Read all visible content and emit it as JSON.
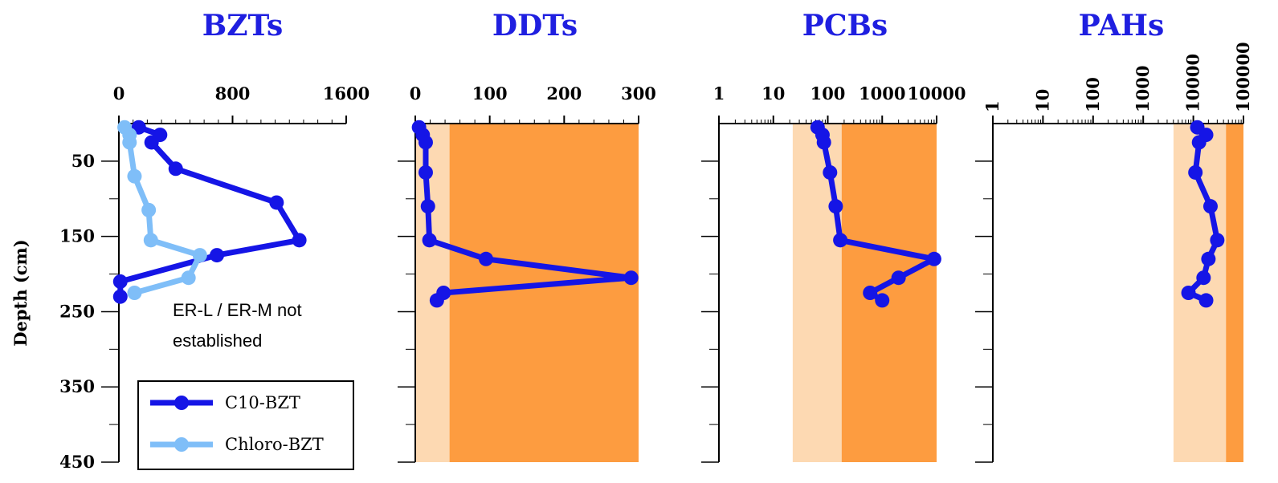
{
  "y_axis": {
    "label": "Depth (cm)",
    "ticks": [
      50,
      150,
      250,
      350,
      450
    ],
    "ylim": [
      0,
      450
    ]
  },
  "note_lines": [
    "ER-L /  ER-M not",
    "established"
  ],
  "legend": {
    "items": [
      {
        "label": "C10-BZT",
        "color": "#1515e6"
      },
      {
        "label": "Chloro-BZT",
        "color": "#7fbef8"
      }
    ]
  },
  "colors": {
    "title": "#1f1fe0",
    "er_l_band": "#fdd9b2",
    "er_m_band": "#fd9c40"
  },
  "chart_data": [
    {
      "type": "line",
      "title": "BZTs",
      "xscale": "linear",
      "xlim": [
        0,
        1600
      ],
      "xticks": [
        "0",
        "800",
        "1600"
      ],
      "ylabel": "Depth (cm)",
      "series": [
        {
          "name": "C10-BZT",
          "color": "#1515e6",
          "x": [
            140,
            290,
            230,
            400,
            1110,
            1270,
            690,
            10,
            10
          ],
          "y": [
            5,
            15,
            25,
            60,
            105,
            155,
            175,
            210,
            230
          ]
        },
        {
          "name": "Chloro-BZT",
          "color": "#7fbef8",
          "x": [
            40,
            75,
            75,
            110,
            210,
            225,
            570,
            490,
            110
          ],
          "y": [
            5,
            15,
            25,
            70,
            115,
            155,
            175,
            205,
            225
          ]
        }
      ]
    },
    {
      "type": "line",
      "title": "DDTs",
      "xscale": "linear",
      "xlim": [
        0,
        300
      ],
      "xticks": [
        "0",
        "100",
        "200",
        "300"
      ],
      "bands": [
        {
          "name": "ER-L",
          "from": 0,
          "to": 46
        },
        {
          "name": "ER-M",
          "from": 46,
          "to": 300
        }
      ],
      "series": [
        {
          "color": "#1515e6",
          "x": [
            5,
            10,
            14,
            14,
            17,
            19,
            95,
            290,
            38,
            29
          ],
          "y": [
            5,
            15,
            25,
            65,
            110,
            155,
            180,
            205,
            225,
            235
          ]
        }
      ]
    },
    {
      "type": "line",
      "title": "PCBs",
      "xscale": "log",
      "xlim": [
        1,
        10000
      ],
      "xticks": [
        "1",
        "10",
        "100",
        "1000",
        "10000"
      ],
      "bands": [
        {
          "name": "ER-L",
          "from": 22.7,
          "to": 180
        },
        {
          "name": "ER-M",
          "from": 180,
          "to": 10000
        }
      ],
      "series": [
        {
          "color": "#1515e6",
          "x": [
            65,
            80,
            85,
            110,
            140,
            170,
            9000,
            2000,
            600,
            1000
          ],
          "y": [
            5,
            15,
            25,
            65,
            110,
            155,
            180,
            205,
            225,
            235
          ]
        }
      ]
    },
    {
      "type": "line",
      "title": "PAHs",
      "xscale": "log",
      "xlim": [
        1,
        100000
      ],
      "xticks": [
        "1",
        "10",
        "100",
        "1000",
        "10000",
        "100000"
      ],
      "bands": [
        {
          "name": "ER-L",
          "from": 4022,
          "to": 44792
        },
        {
          "name": "ER-M",
          "from": 44792,
          "to": 100000
        }
      ],
      "series": [
        {
          "color": "#1515e6",
          "x": [
            12000,
            18000,
            13000,
            11000,
            22000,
            30000,
            20000,
            16000,
            8000,
            18000
          ],
          "y": [
            5,
            15,
            25,
            65,
            110,
            155,
            180,
            205,
            225,
            235
          ]
        }
      ]
    }
  ]
}
